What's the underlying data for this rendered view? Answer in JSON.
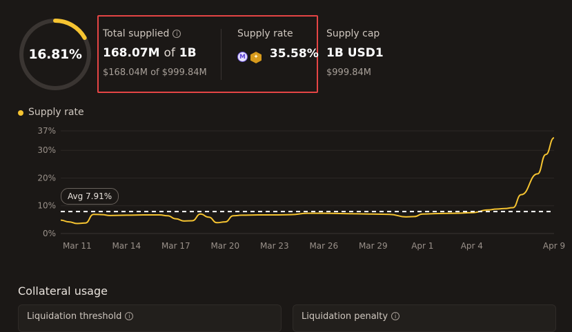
{
  "utilization": {
    "percent_label": "16.81%",
    "fraction": 0.1681
  },
  "total_supplied": {
    "label": "Total supplied",
    "value_amount": "168.07M",
    "value_of": "of",
    "value_total": "1B",
    "usd_line": "$168.04M of $999.84M"
  },
  "supply_rate_stat": {
    "label": "Supply rate",
    "token_icons": [
      "morpho-token-icon",
      "hexagon-reward-icon"
    ],
    "value": "35.58%"
  },
  "supply_cap": {
    "label": "Supply cap",
    "value": "1B USD1",
    "usd": "$999.84M"
  },
  "colors": {
    "accent": "#f6c431",
    "ring_track": "#3a3532",
    "highlight_border": "#e64545"
  },
  "chart_data": {
    "type": "line",
    "legend": [
      "Supply rate"
    ],
    "legend_placement": "top-left",
    "y_ticks": [
      "0%",
      "10%",
      "20%",
      "30%",
      "37%"
    ],
    "y_tick_values": [
      0,
      10,
      20,
      30,
      37
    ],
    "ylim": [
      0,
      37
    ],
    "x_ticks": [
      "Mar 11",
      "Mar 14",
      "Mar 17",
      "Mar 20",
      "Mar 23",
      "Mar 26",
      "Mar 29",
      "Apr 1",
      "Apr 4",
      "Apr 9"
    ],
    "average": {
      "label": "Avg 7.91%",
      "value": 7.91
    },
    "series": [
      {
        "name": "Supply rate",
        "x": [
          "Mar 10",
          "Mar 10",
          "Mar 11",
          "Mar 11",
          "Mar 12",
          "Mar 12",
          "Mar 13",
          "Mar 14",
          "Mar 15",
          "Mar 16",
          "Mar 16",
          "Mar 17",
          "Mar 17",
          "Mar 18",
          "Mar 18",
          "Mar 19",
          "Mar 19",
          "Mar 20",
          "Mar 20",
          "Mar 21",
          "Mar 22",
          "Mar 23",
          "Mar 24",
          "Mar 25",
          "Mar 26",
          "Mar 27",
          "Mar 28",
          "Mar 29",
          "Mar 30",
          "Mar 31",
          "Mar 31",
          "Apr 1",
          "Apr 2",
          "Apr 3",
          "Apr 4",
          "Apr 5",
          "Apr 5",
          "Apr 6",
          "Apr 6",
          "Apr 7",
          "Apr 8",
          "Apr 8",
          "Apr 9"
        ],
        "values": [
          4.8,
          4.2,
          3.6,
          3.8,
          6.9,
          6.8,
          6.5,
          6.6,
          6.7,
          6.7,
          6.4,
          5.3,
          4.5,
          4.6,
          7.0,
          5.9,
          3.9,
          4.2,
          6.4,
          6.6,
          6.7,
          6.7,
          6.8,
          7.3,
          7.3,
          7.2,
          7.1,
          7.0,
          6.9,
          6.0,
          6.1,
          7.0,
          7.2,
          7.3,
          7.5,
          8.5,
          8.8,
          9.0,
          9.3,
          14.0,
          21.5,
          28.5,
          34.5
        ]
      }
    ]
  },
  "collateral": {
    "title": "Collateral usage",
    "cards": [
      {
        "label": "Liquidation threshold"
      },
      {
        "label": "Liquidation penalty"
      }
    ]
  }
}
